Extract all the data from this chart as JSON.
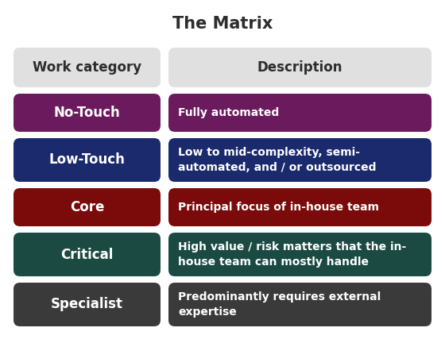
{
  "title": "The Matrix",
  "title_fontsize": 15,
  "title_color": "#2d2d2d",
  "background_color": "#ffffff",
  "header": {
    "labels": [
      "Work category",
      "Description"
    ],
    "bg_color": "#e0e0e0",
    "text_color": "#2d2d2d",
    "fontsize": 12
  },
  "rows": [
    {
      "category": "No-Touch",
      "description": "Fully automated",
      "color": "#6b1a5e",
      "text_color": "#ffffff",
      "desc_fontsize": 10,
      "cat_fontsize": 12,
      "multiline": false
    },
    {
      "category": "Low-Touch",
      "description": "Low to mid-complexity, semi-\nautomated, and / or outsourced",
      "color": "#1a2a6c",
      "text_color": "#ffffff",
      "desc_fontsize": 10,
      "cat_fontsize": 12,
      "multiline": true
    },
    {
      "category": "Core",
      "description": "Principal focus of in-house team",
      "color": "#7b0a0a",
      "text_color": "#ffffff",
      "desc_fontsize": 10,
      "cat_fontsize": 12,
      "multiline": false
    },
    {
      "category": "Critical",
      "description": "High value / risk matters that the in-\nhouse team can mostly handle",
      "color": "#1a4a42",
      "text_color": "#ffffff",
      "desc_fontsize": 10,
      "cat_fontsize": 12,
      "multiline": true
    },
    {
      "category": "Specialist",
      "description": "Predominantly requires external\nexpertise",
      "color": "#3a3a3a",
      "text_color": "#ffffff",
      "desc_fontsize": 10,
      "cat_fontsize": 12,
      "multiline": true
    }
  ]
}
